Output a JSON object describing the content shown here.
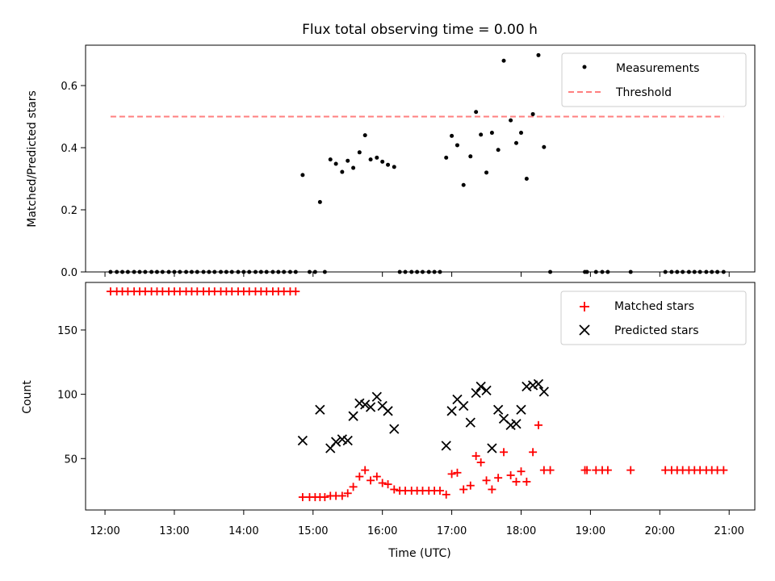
{
  "chart_data": [
    {
      "type": "scatter",
      "title": "Flux total observing time = 0.00 h",
      "xlabel": "",
      "ylabel": "Matched/Predicted stars",
      "x_unit": "Time (UTC), hours",
      "xlim": [
        11.72,
        21.37
      ],
      "ylim": [
        0,
        0.73
      ],
      "yticks": [
        "0.0",
        "0.2",
        "0.4",
        "0.6"
      ],
      "ytick_values": [
        0,
        0.2,
        0.4,
        0.6
      ],
      "grid": false,
      "legend": "top-right",
      "series": [
        {
          "name": "Measurements",
          "marker": "dot",
          "color": "#000000",
          "points": [
            [
              12.08,
              0
            ],
            [
              12.17,
              0
            ],
            [
              12.25,
              0
            ],
            [
              12.33,
              0
            ],
            [
              12.42,
              0
            ],
            [
              12.5,
              0
            ],
            [
              12.58,
              0
            ],
            [
              12.67,
              0
            ],
            [
              12.75,
              0
            ],
            [
              12.83,
              0
            ],
            [
              12.92,
              0
            ],
            [
              13.0,
              0
            ],
            [
              13.08,
              0
            ],
            [
              13.17,
              0
            ],
            [
              13.25,
              0
            ],
            [
              13.33,
              0
            ],
            [
              13.42,
              0
            ],
            [
              13.5,
              0
            ],
            [
              13.58,
              0
            ],
            [
              13.67,
              0
            ],
            [
              13.75,
              0
            ],
            [
              13.83,
              0
            ],
            [
              13.92,
              0
            ],
            [
              14.0,
              0
            ],
            [
              14.08,
              0
            ],
            [
              14.17,
              0
            ],
            [
              14.25,
              0
            ],
            [
              14.33,
              0
            ],
            [
              14.42,
              0
            ],
            [
              14.5,
              0
            ],
            [
              14.58,
              0
            ],
            [
              14.67,
              0
            ],
            [
              14.75,
              0
            ],
            [
              14.85,
              0.312
            ],
            [
              14.95,
              0
            ],
            [
              15.03,
              0
            ],
            [
              15.1,
              0.225
            ],
            [
              15.17,
              0
            ],
            [
              15.25,
              0.362
            ],
            [
              15.33,
              0.348
            ],
            [
              15.42,
              0.322
            ],
            [
              15.5,
              0.358
            ],
            [
              15.58,
              0.335
            ],
            [
              15.67,
              0.385
            ],
            [
              15.75,
              0.44
            ],
            [
              15.83,
              0.362
            ],
            [
              15.92,
              0.368
            ],
            [
              16.0,
              0.355
            ],
            [
              16.08,
              0.345
            ],
            [
              16.17,
              0.338
            ],
            [
              16.25,
              0
            ],
            [
              16.33,
              0
            ],
            [
              16.42,
              0
            ],
            [
              16.5,
              0
            ],
            [
              16.58,
              0
            ],
            [
              16.67,
              0
            ],
            [
              16.75,
              0
            ],
            [
              16.83,
              0
            ],
            [
              16.92,
              0.368
            ],
            [
              17.0,
              0.438
            ],
            [
              17.08,
              0.408
            ],
            [
              17.17,
              0.28
            ],
            [
              17.27,
              0.372
            ],
            [
              17.35,
              0.515
            ],
            [
              17.42,
              0.442
            ],
            [
              17.5,
              0.32
            ],
            [
              17.58,
              0.448
            ],
            [
              17.67,
              0.393
            ],
            [
              17.75,
              0.68
            ],
            [
              17.85,
              0.488
            ],
            [
              17.93,
              0.415
            ],
            [
              18.0,
              0.448
            ],
            [
              18.08,
              0.3
            ],
            [
              18.17,
              0.508
            ],
            [
              18.25,
              0.698
            ],
            [
              18.33,
              0.402
            ],
            [
              18.42,
              0
            ],
            [
              18.92,
              0
            ],
            [
              18.95,
              0
            ],
            [
              19.08,
              0
            ],
            [
              19.17,
              0
            ],
            [
              19.25,
              0
            ],
            [
              19.58,
              0
            ],
            [
              20.08,
              0
            ],
            [
              20.17,
              0
            ],
            [
              20.25,
              0
            ],
            [
              20.33,
              0
            ],
            [
              20.42,
              0
            ],
            [
              20.5,
              0
            ],
            [
              20.58,
              0
            ],
            [
              20.67,
              0
            ],
            [
              20.75,
              0
            ],
            [
              20.83,
              0
            ],
            [
              20.92,
              0
            ]
          ]
        },
        {
          "name": "Threshold",
          "marker": "dashed-line",
          "color": "#ff7f7f",
          "points": [
            [
              12.08,
              0.5
            ],
            [
              20.92,
              0.5
            ]
          ]
        }
      ]
    },
    {
      "type": "scatter",
      "title": "",
      "xlabel": "Time (UTC)",
      "ylabel": "Count",
      "x_unit": "Time (UTC), hours",
      "xlim": [
        11.72,
        21.37
      ],
      "ylim": [
        10,
        187
      ],
      "xticks": [
        "12:00",
        "13:00",
        "14:00",
        "15:00",
        "16:00",
        "17:00",
        "18:00",
        "19:00",
        "20:00",
        "21:00"
      ],
      "xtick_values": [
        12,
        13,
        14,
        15,
        16,
        17,
        18,
        19,
        20,
        21
      ],
      "yticks": [
        "50",
        "100",
        "150"
      ],
      "ytick_values": [
        50,
        100,
        150
      ],
      "grid": false,
      "legend": "top-right",
      "series": [
        {
          "name": "Matched stars",
          "marker": "plus",
          "color": "#ff0000",
          "points": [
            [
              12.08,
              180
            ],
            [
              12.17,
              180
            ],
            [
              12.25,
              180
            ],
            [
              12.33,
              180
            ],
            [
              12.42,
              180
            ],
            [
              12.5,
              180
            ],
            [
              12.58,
              180
            ],
            [
              12.67,
              180
            ],
            [
              12.75,
              180
            ],
            [
              12.83,
              180
            ],
            [
              12.92,
              180
            ],
            [
              13.0,
              180
            ],
            [
              13.08,
              180
            ],
            [
              13.17,
              180
            ],
            [
              13.25,
              180
            ],
            [
              13.33,
              180
            ],
            [
              13.42,
              180
            ],
            [
              13.5,
              180
            ],
            [
              13.58,
              180
            ],
            [
              13.67,
              180
            ],
            [
              13.75,
              180
            ],
            [
              13.83,
              180
            ],
            [
              13.92,
              180
            ],
            [
              14.0,
              180
            ],
            [
              14.08,
              180
            ],
            [
              14.17,
              180
            ],
            [
              14.25,
              180
            ],
            [
              14.33,
              180
            ],
            [
              14.42,
              180
            ],
            [
              14.5,
              180
            ],
            [
              14.58,
              180
            ],
            [
              14.67,
              180
            ],
            [
              14.75,
              180
            ],
            [
              14.85,
              20
            ],
            [
              14.95,
              20
            ],
            [
              15.03,
              20
            ],
            [
              15.1,
              20
            ],
            [
              15.17,
              20
            ],
            [
              15.25,
              21
            ],
            [
              15.33,
              21
            ],
            [
              15.42,
              21
            ],
            [
              15.5,
              23
            ],
            [
              15.58,
              28
            ],
            [
              15.67,
              36
            ],
            [
              15.75,
              41
            ],
            [
              15.83,
              33
            ],
            [
              15.92,
              36
            ],
            [
              16.0,
              31
            ],
            [
              16.08,
              30
            ],
            [
              16.17,
              26
            ],
            [
              16.25,
              25
            ],
            [
              16.33,
              25
            ],
            [
              16.42,
              25
            ],
            [
              16.5,
              25
            ],
            [
              16.58,
              25
            ],
            [
              16.67,
              25
            ],
            [
              16.75,
              25
            ],
            [
              16.83,
              25
            ],
            [
              16.92,
              22
            ],
            [
              17.0,
              38
            ],
            [
              17.08,
              39
            ],
            [
              17.17,
              26
            ],
            [
              17.27,
              29
            ],
            [
              17.35,
              52
            ],
            [
              17.42,
              47
            ],
            [
              17.5,
              33
            ],
            [
              17.58,
              26
            ],
            [
              17.67,
              35
            ],
            [
              17.75,
              55
            ],
            [
              17.85,
              37
            ],
            [
              17.93,
              32
            ],
            [
              18.0,
              40
            ],
            [
              18.08,
              32
            ],
            [
              18.17,
              55
            ],
            [
              18.25,
              76
            ],
            [
              18.33,
              41
            ],
            [
              18.42,
              41
            ],
            [
              18.92,
              41
            ],
            [
              18.95,
              41
            ],
            [
              19.08,
              41
            ],
            [
              19.17,
              41
            ],
            [
              19.25,
              41
            ],
            [
              19.58,
              41
            ],
            [
              20.08,
              41
            ],
            [
              20.17,
              41
            ],
            [
              20.25,
              41
            ],
            [
              20.33,
              41
            ],
            [
              20.42,
              41
            ],
            [
              20.5,
              41
            ],
            [
              20.58,
              41
            ],
            [
              20.67,
              41
            ],
            [
              20.75,
              41
            ],
            [
              20.83,
              41
            ],
            [
              20.92,
              41
            ]
          ]
        },
        {
          "name": "Predicted stars",
          "marker": "x",
          "color": "#000000",
          "points": [
            [
              14.85,
              64
            ],
            [
              15.1,
              88
            ],
            [
              15.25,
              58
            ],
            [
              15.33,
              63
            ],
            [
              15.42,
              65
            ],
            [
              15.5,
              64
            ],
            [
              15.58,
              83
            ],
            [
              15.67,
              93
            ],
            [
              15.75,
              92
            ],
            [
              15.83,
              90
            ],
            [
              15.92,
              98
            ],
            [
              16.0,
              91
            ],
            [
              16.08,
              87
            ],
            [
              16.17,
              73
            ],
            [
              16.92,
              60
            ],
            [
              17.0,
              87
            ],
            [
              17.08,
              96
            ],
            [
              17.17,
              91
            ],
            [
              17.27,
              78
            ],
            [
              17.35,
              101
            ],
            [
              17.42,
              106
            ],
            [
              17.5,
              103
            ],
            [
              17.58,
              58
            ],
            [
              17.67,
              88
            ],
            [
              17.75,
              81
            ],
            [
              17.85,
              76
            ],
            [
              17.93,
              77
            ],
            [
              18.0,
              88
            ],
            [
              18.08,
              106
            ],
            [
              18.17,
              107
            ],
            [
              18.25,
              108
            ],
            [
              18.33,
              102
            ]
          ]
        }
      ]
    }
  ]
}
